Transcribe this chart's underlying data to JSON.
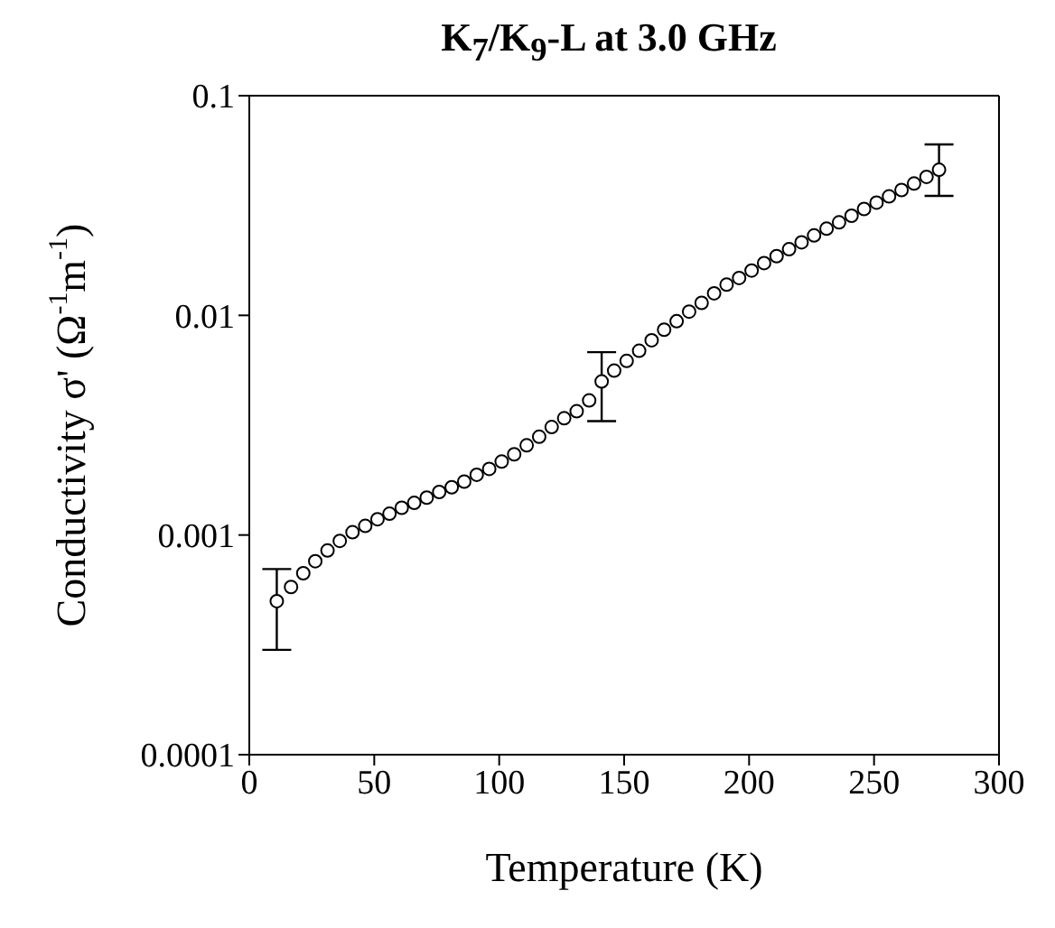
{
  "chart_data": {
    "type": "scatter",
    "title": "K$_{7}$/K$_{9}$-L at 3.0 GHz",
    "xlabel": "Temperature (K)",
    "ylabel": "Conductivity σ' (Ω$^{-1}$m$^{-1}$)",
    "xlim": [
      0,
      300
    ],
    "xticks": [
      0,
      50,
      100,
      150,
      200,
      250,
      300
    ],
    "ylim": [
      0.0001,
      0.1
    ],
    "yticks": [
      0.0001,
      0.001,
      0.01,
      0.1
    ],
    "log": "y",
    "grid": false,
    "legend": false,
    "marker": "circle",
    "series": [
      {
        "color": "#000000",
        "x": [
          11,
          16.7,
          21.6,
          26.4,
          31.3,
          36.2,
          41.3,
          46.4,
          51.3,
          56.1,
          61,
          66,
          71,
          76,
          81,
          86,
          91,
          96,
          101,
          106,
          111,
          116,
          121,
          126,
          131,
          136,
          141,
          146,
          151,
          156,
          161,
          166,
          171,
          176,
          181,
          186,
          191,
          196,
          201,
          206,
          211,
          216,
          221,
          226,
          231,
          236,
          241,
          246,
          251,
          256,
          261,
          266,
          271,
          276
        ],
        "values": [
          0.0005,
          0.00058,
          0.00067,
          0.00076,
          0.00085,
          0.00094,
          0.00103,
          0.0011,
          0.00118,
          0.00125,
          0.00133,
          0.0014,
          0.00148,
          0.00157,
          0.00165,
          0.00175,
          0.00188,
          0.002,
          0.00216,
          0.00233,
          0.00256,
          0.0028,
          0.0031,
          0.0034,
          0.00366,
          0.0041,
          0.005,
          0.0056,
          0.0062,
          0.0069,
          0.0077,
          0.0086,
          0.0094,
          0.0104,
          0.0114,
          0.0126,
          0.0138,
          0.0148,
          0.016,
          0.0173,
          0.0186,
          0.02,
          0.0215,
          0.0231,
          0.0248,
          0.0265,
          0.0284,
          0.0305,
          0.0326,
          0.0348,
          0.0372,
          0.0398,
          0.0427,
          0.046
        ],
        "errors": [
          [
            0.0003,
            0.0007
          ],
          null,
          null,
          null,
          null,
          null,
          null,
          null,
          null,
          null,
          null,
          null,
          null,
          null,
          null,
          null,
          null,
          null,
          null,
          null,
          null,
          null,
          null,
          null,
          null,
          null,
          [
            0.0033,
            0.0068
          ],
          null,
          null,
          null,
          null,
          null,
          null,
          null,
          null,
          null,
          null,
          null,
          null,
          null,
          null,
          null,
          null,
          null,
          null,
          null,
          null,
          null,
          null,
          null,
          null,
          null,
          null,
          [
            0.035,
            0.06
          ]
        ]
      }
    ]
  }
}
